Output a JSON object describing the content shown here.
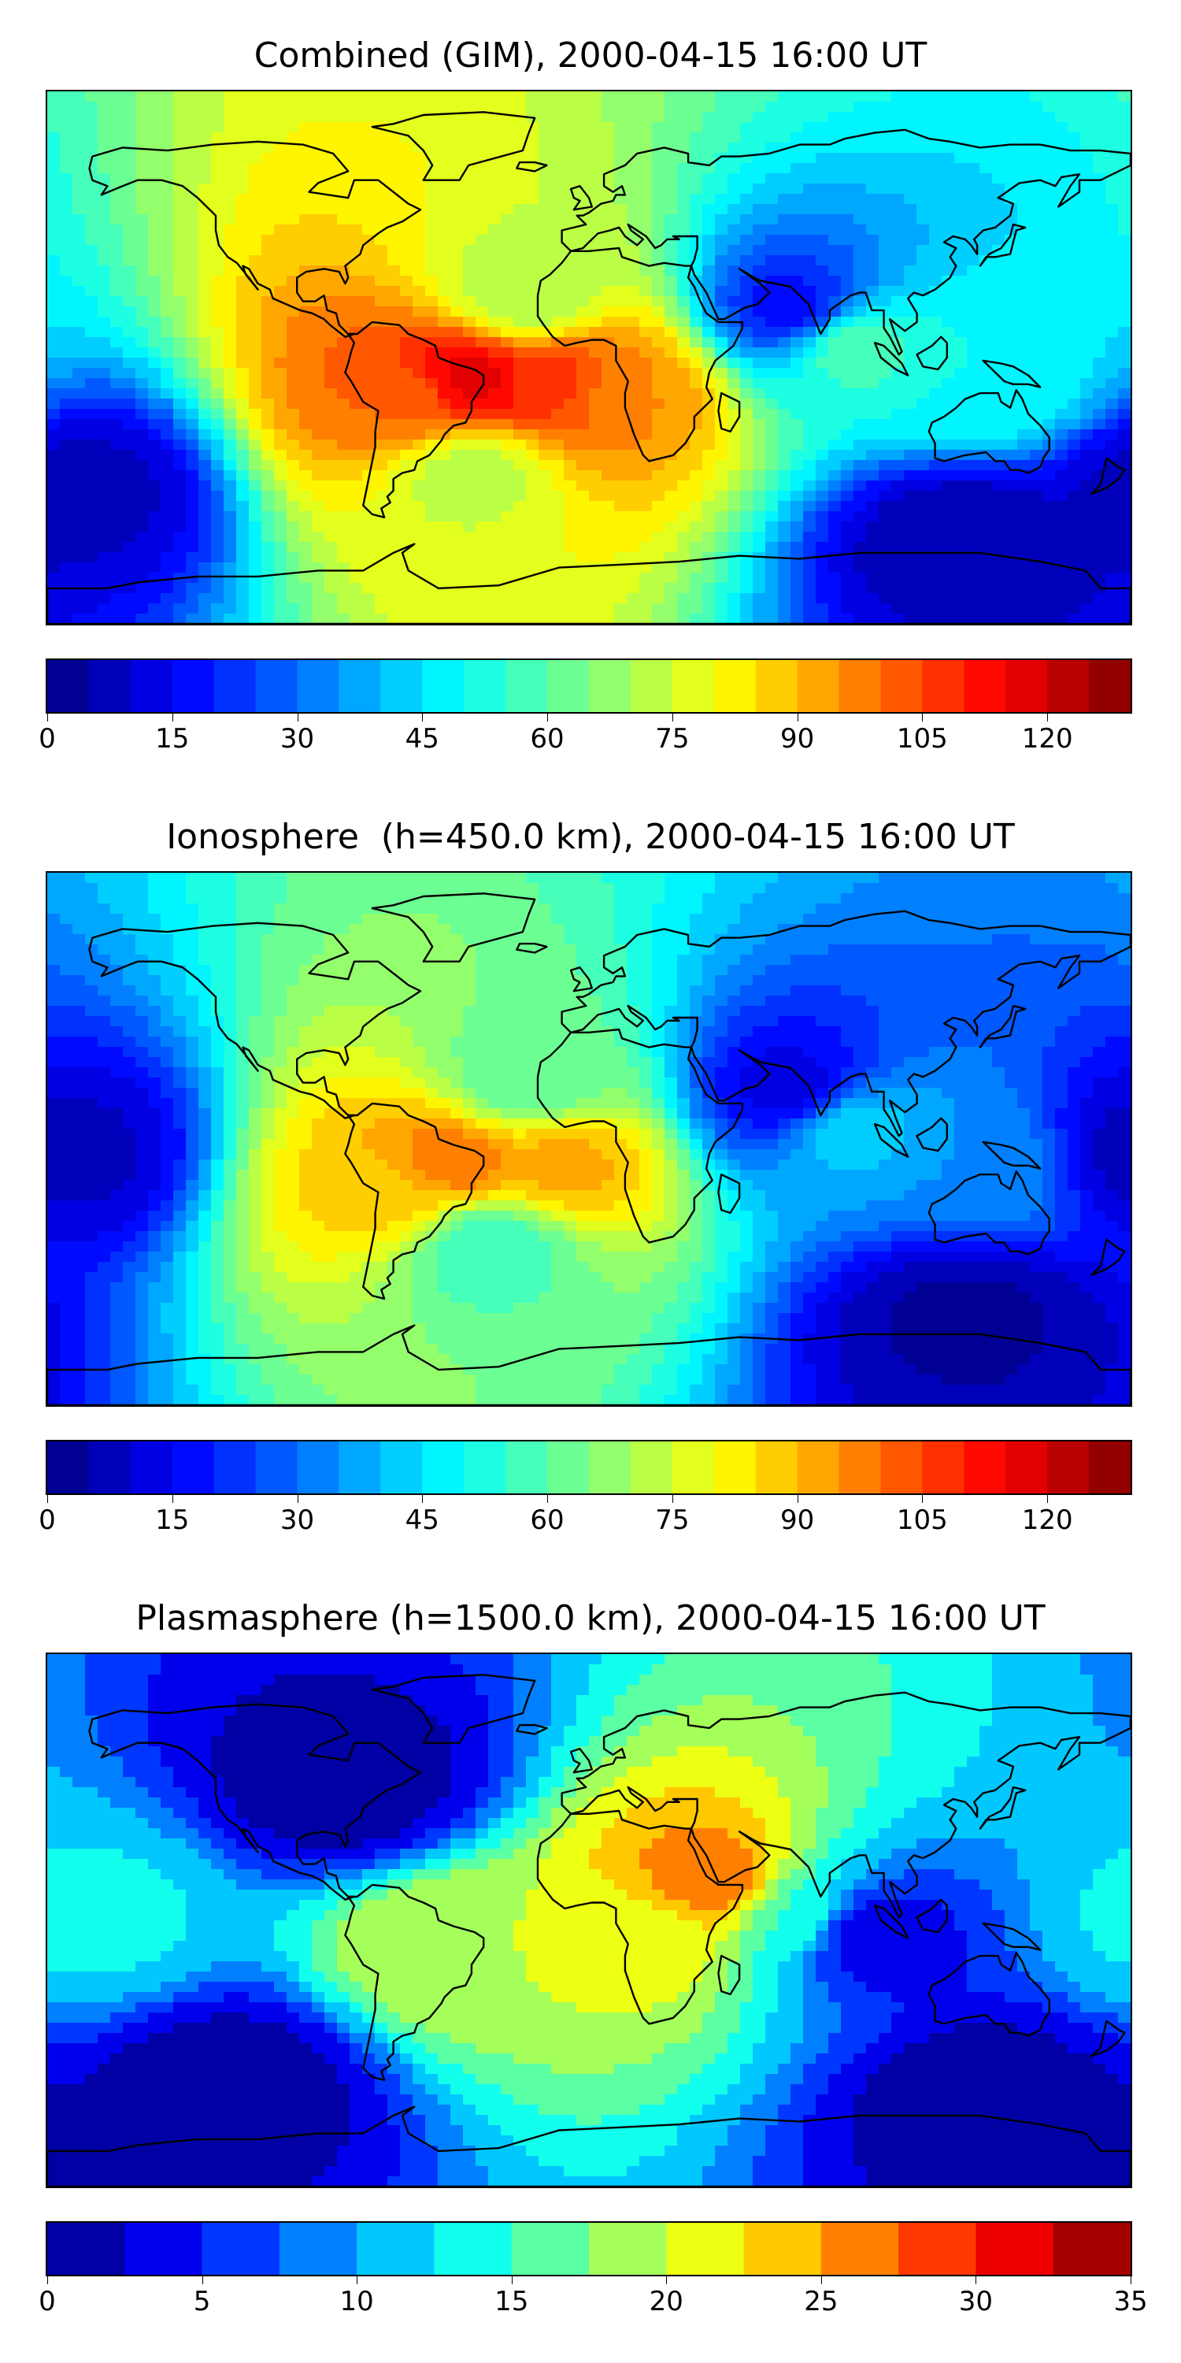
{
  "panels": [
    {
      "title": "Combined (GIM), 2000-04-15 16:00 UT",
      "colorbar": {
        "min": 0,
        "max": 130,
        "levels": 26,
        "ticks": [
          "0",
          "15",
          "30",
          "45",
          "60",
          "75",
          "90",
          "105",
          "120"
        ],
        "tick_values": [
          0,
          15,
          30,
          45,
          60,
          75,
          90,
          105,
          120
        ]
      },
      "field_features": [
        {
          "lon": -40,
          "lat": -8,
          "value": 118
        },
        {
          "lon": -10,
          "lat": -8,
          "value": 108
        },
        {
          "lon": 12,
          "lat": -10,
          "value": 95
        },
        {
          "lon": -60,
          "lat": -15,
          "value": 100
        },
        {
          "lon": -20,
          "lat": 20,
          "value": 70
        },
        {
          "lon": -40,
          "lat": -38,
          "value": 72
        },
        {
          "lon": 85,
          "lat": 5,
          "value": 60
        },
        {
          "lon": 130,
          "lat": -10,
          "value": 50
        },
        {
          "lon": 70,
          "lat": 15,
          "value": 15
        },
        {
          "lon": -170,
          "lat": -45,
          "value": 8
        },
        {
          "lon": 125,
          "lat": -60,
          "value": 5
        }
      ]
    },
    {
      "title": "Ionosphere  (h=450.0 km), 2000-04-15 16:00 UT",
      "colorbar": {
        "min": 0,
        "max": 130,
        "levels": 26,
        "ticks": [
          "0",
          "15",
          "30",
          "45",
          "60",
          "75",
          "90",
          "105",
          "120"
        ],
        "tick_values": [
          0,
          15,
          30,
          45,
          60,
          75,
          90,
          105,
          120
        ]
      },
      "field_features": [
        {
          "lon": -45,
          "lat": -8,
          "value": 100
        },
        {
          "lon": -10,
          "lat": -8,
          "value": 92
        },
        {
          "lon": -65,
          "lat": -18,
          "value": 88
        },
        {
          "lon": -20,
          "lat": 18,
          "value": 60
        },
        {
          "lon": -35,
          "lat": -35,
          "value": 55
        },
        {
          "lon": 85,
          "lat": 5,
          "value": 45
        },
        {
          "lon": 130,
          "lat": -10,
          "value": 35
        },
        {
          "lon": 70,
          "lat": 15,
          "value": 10
        },
        {
          "lon": -175,
          "lat": -5,
          "value": 8
        },
        {
          "lon": 125,
          "lat": -60,
          "value": 4
        }
      ]
    },
    {
      "title": "Plasmasphere (h=1500.0 km), 2000-04-15 16:00 UT",
      "colorbar": {
        "min": 0,
        "max": 35,
        "levels": 14,
        "ticks": [
          "0",
          "5",
          "10",
          "15",
          "20",
          "25",
          "30",
          "35"
        ],
        "tick_values": [
          0,
          5,
          10,
          15,
          20,
          25,
          30,
          35
        ]
      },
      "field_features": [
        {
          "lon": 40,
          "lat": 12,
          "value": 27
        },
        {
          "lon": 20,
          "lat": -5,
          "value": 21
        },
        {
          "lon": -45,
          "lat": -8,
          "value": 20
        },
        {
          "lon": -165,
          "lat": 0,
          "value": 13
        },
        {
          "lon": 70,
          "lat": 0,
          "value": 15
        },
        {
          "lon": -80,
          "lat": 45,
          "value": 1
        },
        {
          "lon": 90,
          "lat": -5,
          "value": 2
        },
        {
          "lon": -120,
          "lat": -55,
          "value": 1
        },
        {
          "lon": 130,
          "lat": -60,
          "value": 1
        }
      ]
    }
  ]
}
